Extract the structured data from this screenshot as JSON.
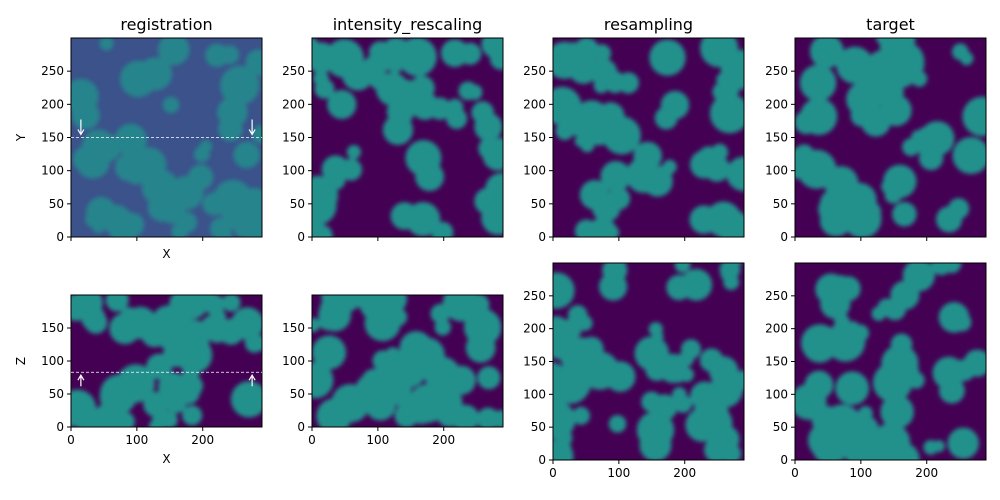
{
  "chart_data": [
    {
      "type": "heatmap",
      "title": "registration",
      "xlabel": "X",
      "ylabel": "Y",
      "xlim": [
        0,
        290
      ],
      "ylim": [
        0,
        300
      ],
      "xticks": [],
      "yticks": [
        0,
        50,
        100,
        150,
        200,
        250
      ],
      "colormap": "viridis",
      "value_range": [
        0.25,
        0.45
      ],
      "annotation": {
        "line_y": 150,
        "arrows_x": [
          15,
          275
        ],
        "arrow_direction": "down"
      }
    },
    {
      "type": "heatmap",
      "title": "intensity_rescaling",
      "xlabel": "",
      "ylabel": "",
      "xlim": [
        0,
        290
      ],
      "ylim": [
        0,
        300
      ],
      "xticks": [],
      "yticks": [
        0,
        50,
        100,
        150,
        200,
        250
      ],
      "colormap": "viridis",
      "value_range": [
        0.0,
        0.5
      ]
    },
    {
      "type": "heatmap",
      "title": "resampling",
      "xlabel": "",
      "ylabel": "",
      "xlim": [
        0,
        290
      ],
      "ylim": [
        0,
        300
      ],
      "xticks": [],
      "yticks": [
        0,
        50,
        100,
        150,
        200,
        250
      ],
      "colormap": "viridis",
      "value_range": [
        0.0,
        0.5
      ]
    },
    {
      "type": "heatmap",
      "title": "target",
      "xlabel": "",
      "ylabel": "",
      "xlim": [
        0,
        290
      ],
      "ylim": [
        0,
        300
      ],
      "xticks": [],
      "yticks": [
        0,
        50,
        100,
        150,
        200,
        250
      ],
      "colormap": "viridis",
      "value_range": [
        0.0,
        0.5
      ]
    },
    {
      "type": "heatmap",
      "title": "",
      "xlabel": "X",
      "ylabel": "Z",
      "xlim": [
        0,
        290
      ],
      "ylim": [
        0,
        200
      ],
      "xticks": [
        0,
        100,
        200
      ],
      "yticks": [
        0,
        50,
        100,
        150
      ],
      "colormap": "viridis",
      "value_range": [
        0.0,
        0.5
      ],
      "annotation": {
        "line_y": 83,
        "arrows_x": [
          15,
          275
        ],
        "arrow_direction": "up"
      }
    },
    {
      "type": "heatmap",
      "title": "",
      "xlabel": "",
      "ylabel": "",
      "xlim": [
        0,
        290
      ],
      "ylim": [
        0,
        200
      ],
      "xticks": [
        0,
        100,
        200
      ],
      "yticks": [
        0,
        50,
        100,
        150
      ],
      "colormap": "viridis",
      "value_range": [
        0.0,
        0.5
      ]
    },
    {
      "type": "heatmap",
      "title": "",
      "xlabel": "",
      "ylabel": "",
      "xlim": [
        0,
        290
      ],
      "ylim": [
        0,
        300
      ],
      "xticks": [
        0,
        100,
        200
      ],
      "yticks": [
        0,
        50,
        100,
        150,
        200,
        250
      ],
      "colormap": "viridis",
      "value_range": [
        0.0,
        0.5
      ]
    },
    {
      "type": "heatmap",
      "title": "",
      "xlabel": "",
      "ylabel": "",
      "xlim": [
        0,
        290
      ],
      "ylim": [
        0,
        300
      ],
      "xticks": [
        0,
        100,
        200
      ],
      "yticks": [
        0,
        50,
        100,
        150,
        200,
        250
      ],
      "colormap": "viridis",
      "value_range": [
        0.0,
        0.5
      ]
    }
  ],
  "colors": {
    "background_dark": "#440154",
    "blob_teal": "#2a9d8a",
    "blob_dim": "#3b528b",
    "annotation": "#ffffff"
  }
}
